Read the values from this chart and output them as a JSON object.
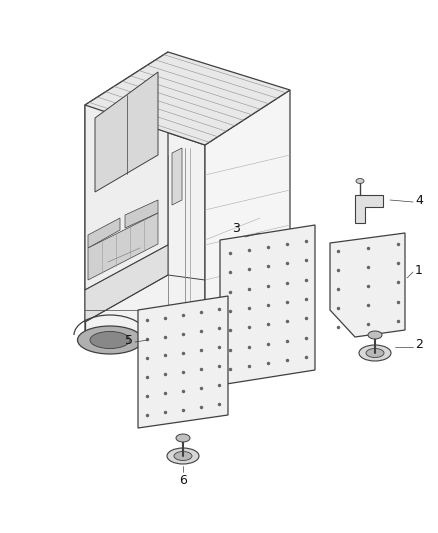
{
  "background_color": "#ffffff",
  "line_color": "#404040",
  "label_color": "#111111",
  "figsize": [
    4.38,
    5.33
  ],
  "dpi": 100,
  "van": {
    "roof_color": "#e8e8e8",
    "body_color": "#f2f2f2",
    "front_color": "#eeeeee",
    "glass_color": "#d8d8d8",
    "wheel_color": "#b0b0b0",
    "wheel_inner": "#888888"
  },
  "parts_label_fontsize": 9
}
